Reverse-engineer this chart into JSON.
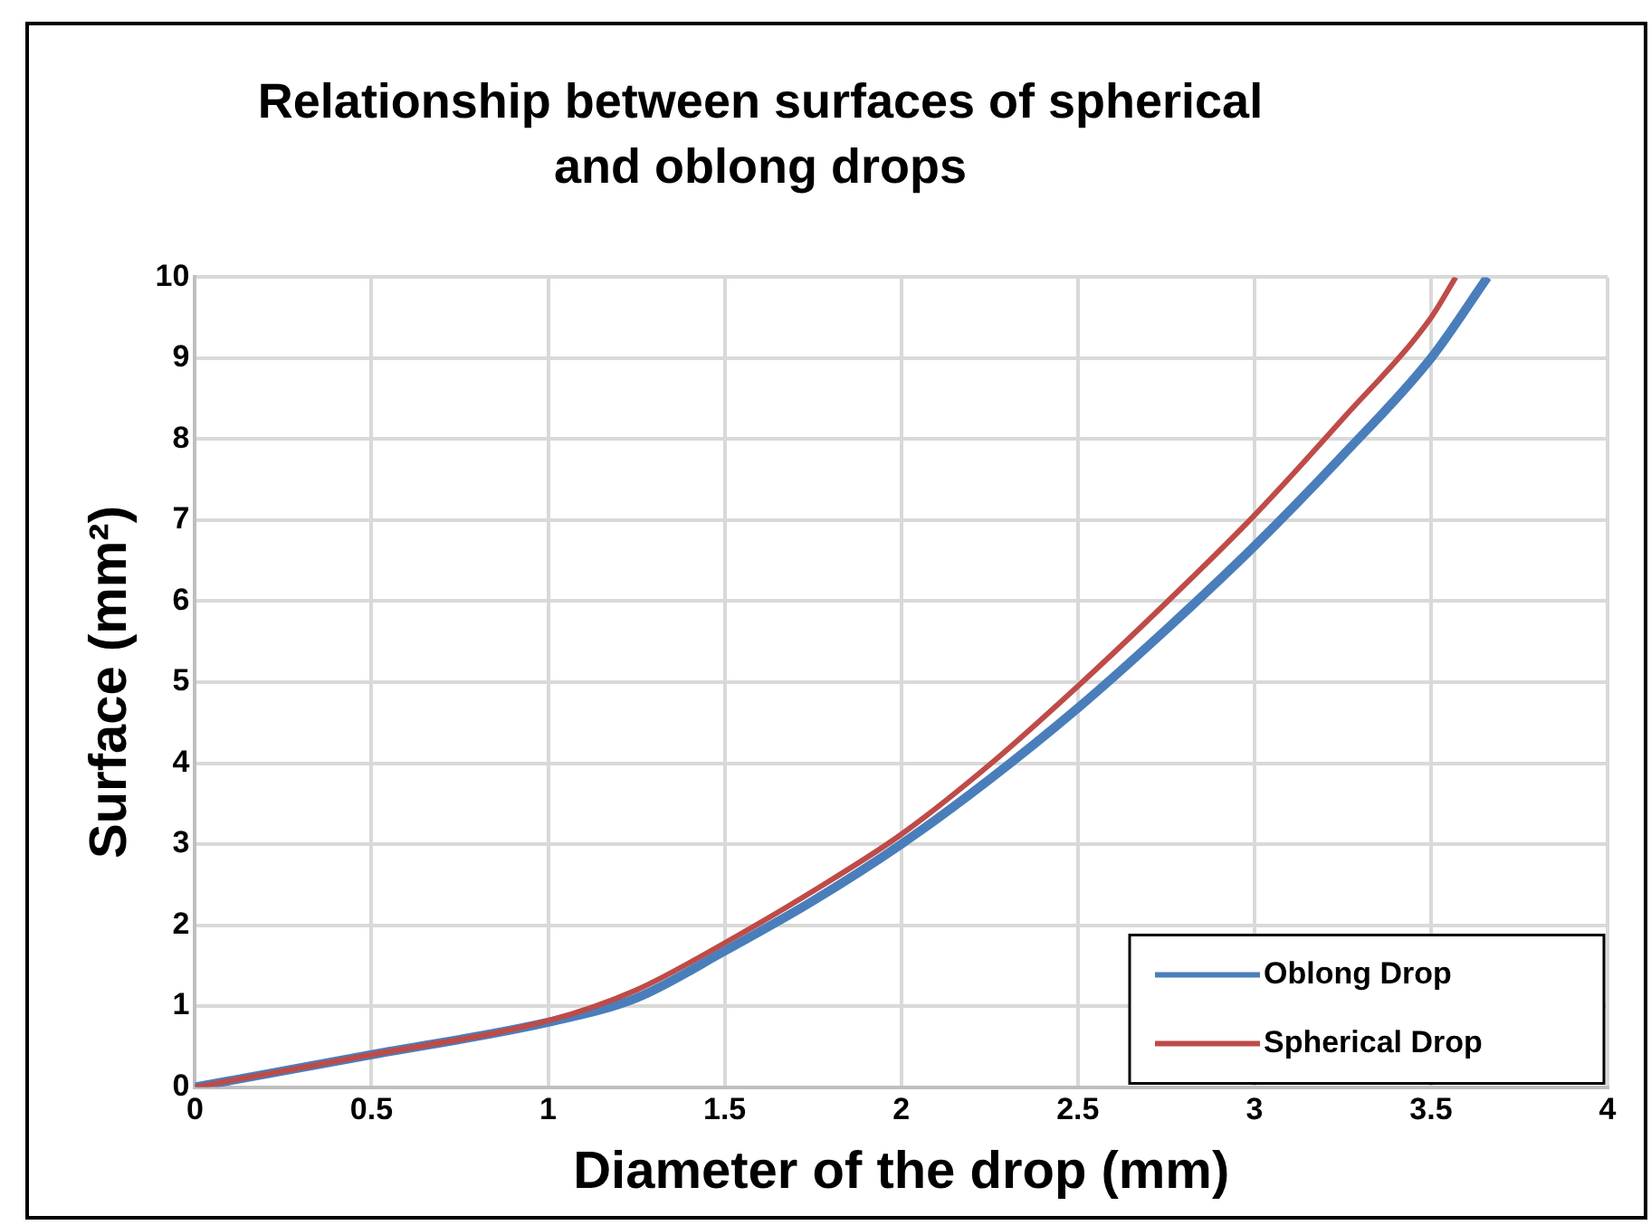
{
  "chart_data": {
    "type": "line",
    "title": "Relationship between surfaces of spherical and oblong drops",
    "xlabel": "Diameter of the drop (mm)",
    "ylabel": "Surface (mm²)",
    "series": [
      {
        "name": "Oblong Drop",
        "color": "#4a7ebb",
        "x": [
          0,
          0.5,
          1,
          1.25,
          1.5,
          1.75,
          2,
          2.25,
          2.5,
          2.75,
          3,
          3.25,
          3.5,
          3.66
        ],
        "values": [
          0,
          0.4,
          0.8,
          1.1,
          1.68,
          2.3,
          3.0,
          3.8,
          4.68,
          5.65,
          6.68,
          7.8,
          9.0,
          10
        ]
      },
      {
        "name": "Spherical Drop",
        "color": "#be4b48",
        "x": [
          0,
          0.5,
          1,
          1.25,
          1.5,
          1.75,
          2,
          2.25,
          2.5,
          2.75,
          3,
          3.25,
          3.5,
          3.57
        ],
        "values": [
          0,
          0.4,
          0.82,
          1.2,
          1.78,
          2.42,
          3.12,
          3.98,
          4.95,
          5.98,
          7.06,
          8.25,
          9.5,
          10
        ]
      }
    ],
    "xlim": [
      0,
      4
    ],
    "xticks": [
      0,
      0.5,
      1,
      1.5,
      2,
      2.5,
      3,
      3.5,
      4
    ],
    "ylim": [
      0,
      10
    ],
    "yticks": [
      0,
      1,
      2,
      3,
      4,
      5,
      6,
      7,
      8,
      9,
      10
    ],
    "grid": true,
    "legend": "bottom right",
    "marker": "none",
    "line_style": "solid"
  }
}
